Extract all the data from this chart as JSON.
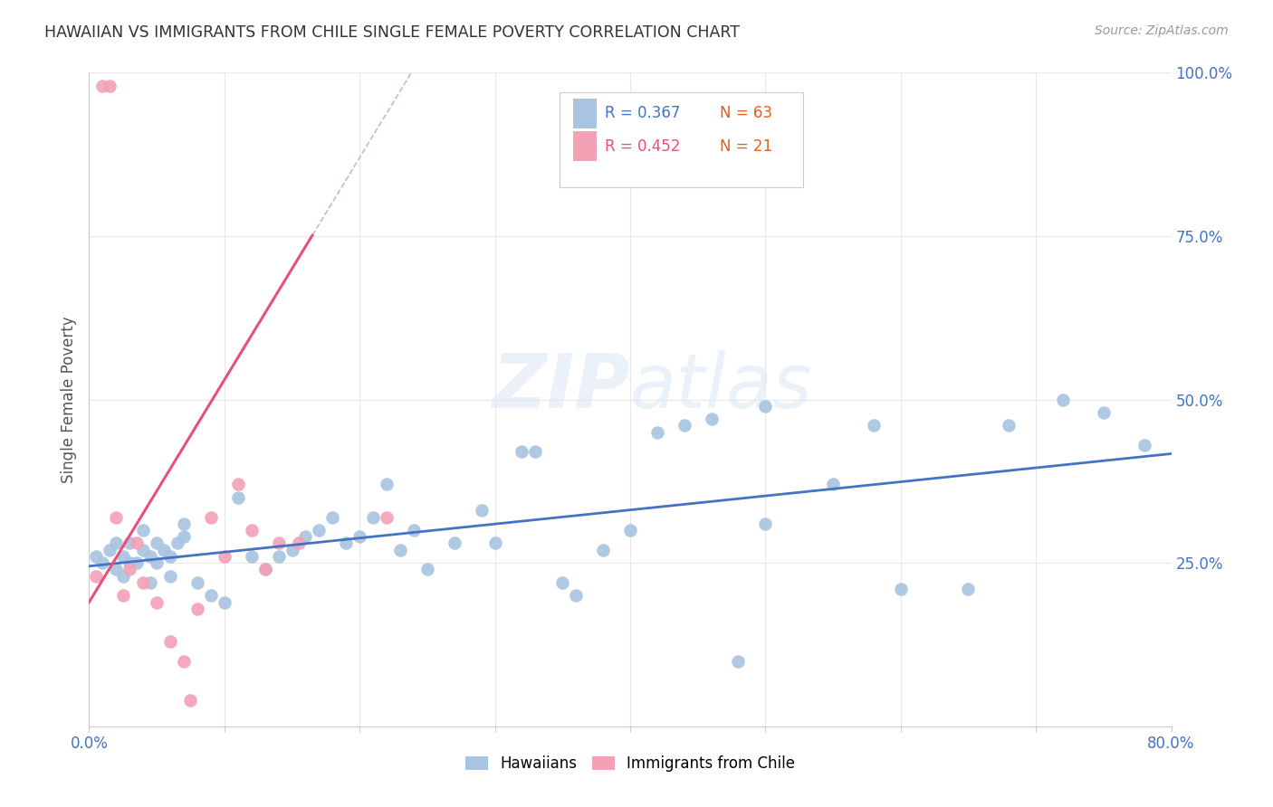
{
  "title": "HAWAIIAN VS IMMIGRANTS FROM CHILE SINGLE FEMALE POVERTY CORRELATION CHART",
  "source": "Source: ZipAtlas.com",
  "ylabel": "Single Female Poverty",
  "watermark": "ZIPatlas",
  "xlim": [
    0,
    0.8
  ],
  "ylim": [
    0,
    1.0
  ],
  "hawaiian_color": "#a8c4e0",
  "chile_color": "#f4a0b5",
  "trendline_hawaiian_color": "#4472c4",
  "trendline_chile_color": "#e8507a",
  "trendline_chile_dashed_color": "#d0a0b0",
  "legend_r_hawaiian": "R = 0.367",
  "legend_n_hawaiian": "N = 63",
  "legend_r_chile": "R = 0.452",
  "legend_n_chile": "N = 21",
  "hawaiian_x": [
    0.005,
    0.01,
    0.015,
    0.02,
    0.02,
    0.025,
    0.025,
    0.03,
    0.03,
    0.035,
    0.04,
    0.04,
    0.045,
    0.045,
    0.05,
    0.05,
    0.055,
    0.06,
    0.06,
    0.065,
    0.07,
    0.07,
    0.08,
    0.09,
    0.1,
    0.11,
    0.12,
    0.13,
    0.14,
    0.15,
    0.16,
    0.17,
    0.18,
    0.19,
    0.2,
    0.21,
    0.22,
    0.23,
    0.24,
    0.25,
    0.27,
    0.29,
    0.3,
    0.32,
    0.33,
    0.35,
    0.36,
    0.38,
    0.4,
    0.42,
    0.44,
    0.46,
    0.48,
    0.5,
    0.5,
    0.55,
    0.58,
    0.6,
    0.65,
    0.68,
    0.72,
    0.75,
    0.78
  ],
  "hawaiian_y": [
    0.26,
    0.25,
    0.27,
    0.28,
    0.24,
    0.26,
    0.23,
    0.28,
    0.25,
    0.25,
    0.3,
    0.27,
    0.26,
    0.22,
    0.25,
    0.28,
    0.27,
    0.26,
    0.23,
    0.28,
    0.31,
    0.29,
    0.22,
    0.2,
    0.19,
    0.35,
    0.26,
    0.24,
    0.26,
    0.27,
    0.29,
    0.3,
    0.32,
    0.28,
    0.29,
    0.32,
    0.37,
    0.27,
    0.3,
    0.24,
    0.28,
    0.33,
    0.28,
    0.42,
    0.42,
    0.22,
    0.2,
    0.27,
    0.3,
    0.45,
    0.46,
    0.47,
    0.1,
    0.49,
    0.31,
    0.37,
    0.46,
    0.21,
    0.21,
    0.46,
    0.5,
    0.48,
    0.43
  ],
  "chile_x": [
    0.005,
    0.01,
    0.015,
    0.02,
    0.025,
    0.03,
    0.035,
    0.04,
    0.05,
    0.06,
    0.07,
    0.075,
    0.08,
    0.09,
    0.1,
    0.11,
    0.12,
    0.13,
    0.14,
    0.155,
    0.22
  ],
  "chile_y": [
    0.23,
    0.98,
    0.98,
    0.32,
    0.2,
    0.24,
    0.28,
    0.22,
    0.19,
    0.13,
    0.1,
    0.04,
    0.18,
    0.32,
    0.26,
    0.37,
    0.3,
    0.24,
    0.28,
    0.28,
    0.32
  ],
  "background_color": "#ffffff",
  "grid_color": "#e8e8e8"
}
